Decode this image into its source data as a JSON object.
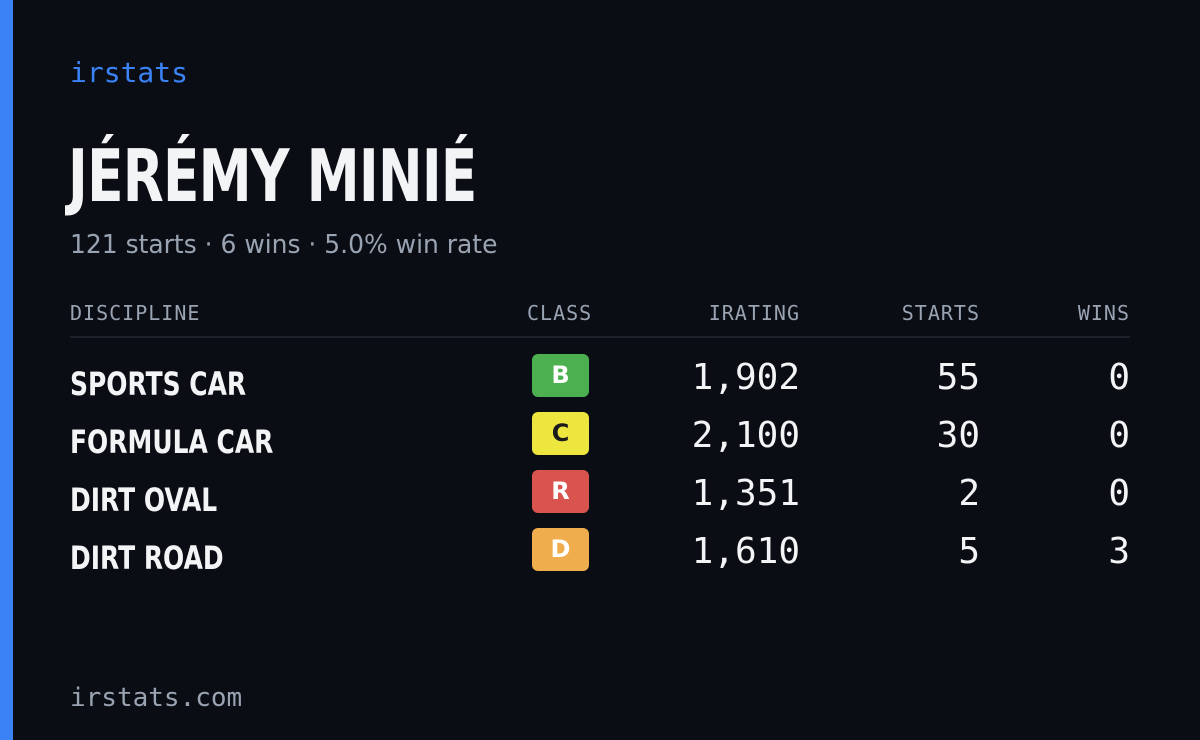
{
  "brand": "irstats",
  "driver": {
    "name": "JÉRÉMY MINIÉ",
    "summary": "121 starts · 6 wins · 5.0% win rate"
  },
  "table": {
    "headers": {
      "discipline": "DISCIPLINE",
      "class": "CLASS",
      "irating": "IRATING",
      "starts": "STARTS",
      "wins": "WINS"
    },
    "rows": [
      {
        "discipline": "SPORTS CAR",
        "class": "B",
        "class_color": "#4caf50",
        "class_text_color": "#ffffff",
        "irating": "1,902",
        "starts": "55",
        "wins": "0"
      },
      {
        "discipline": "FORMULA CAR",
        "class": "C",
        "class_color": "#ece63f",
        "class_text_color": "#1a1a1a",
        "irating": "2,100",
        "starts": "30",
        "wins": "0"
      },
      {
        "discipline": "DIRT OVAL",
        "class": "R",
        "class_color": "#d9534f",
        "class_text_color": "#ffffff",
        "irating": "1,351",
        "starts": "2",
        "wins": "0"
      },
      {
        "discipline": "DIRT ROAD",
        "class": "D",
        "class_color": "#f0ad4e",
        "class_text_color": "#ffffff",
        "irating": "1,610",
        "starts": "5",
        "wins": "3"
      }
    ]
  },
  "footer": "irstats.com",
  "colors": {
    "background": "#0a0d14",
    "accent": "#3b82f6",
    "text_primary": "#f3f4f6",
    "text_muted": "#9aa3b2"
  }
}
